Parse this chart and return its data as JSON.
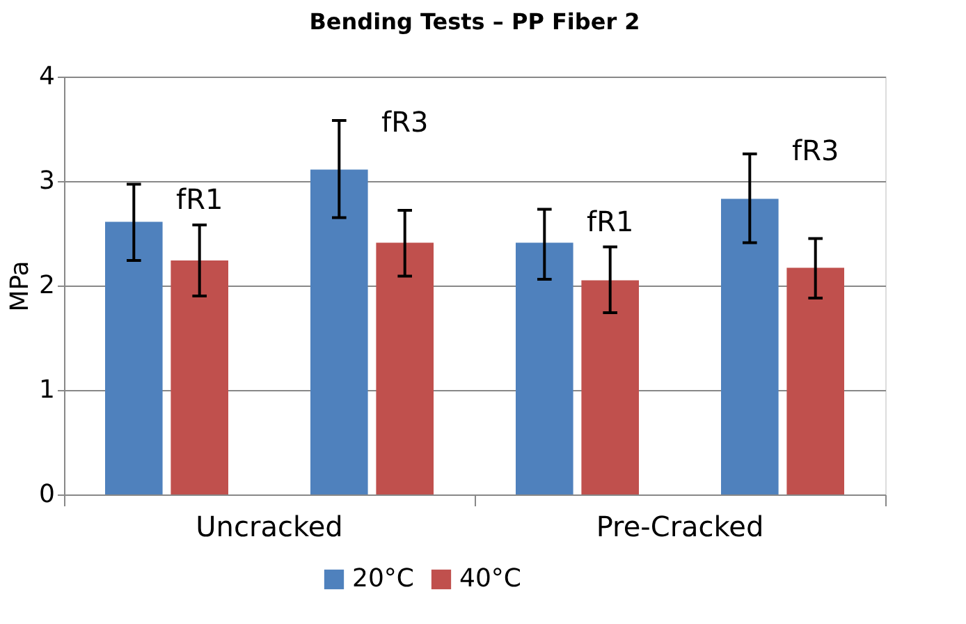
{
  "chart_data": {
    "type": "bar",
    "title": "Bending Tests – PP Fiber 2",
    "ylabel": "MPa",
    "categories": [
      "fR1",
      "fR3",
      "fR1",
      "fR3"
    ],
    "series": [
      {
        "name": "20°C",
        "color": "#4f81bd",
        "values": [
          2.61,
          3.11,
          2.41,
          2.83
        ],
        "errors": [
          [
            2.24,
            2.97
          ],
          [
            2.65,
            3.58
          ],
          [
            2.06,
            2.73
          ],
          [
            2.41,
            3.26
          ]
        ]
      },
      {
        "name": "40°C",
        "color": "#c0504d",
        "values": [
          2.24,
          2.41,
          2.05,
          2.17
        ],
        "errors": [
          [
            1.9,
            2.58
          ],
          [
            2.09,
            2.72
          ],
          [
            1.74,
            2.37
          ],
          [
            1.88,
            2.45
          ]
        ]
      }
    ],
    "annotations": [
      "Uncracked",
      "Pre-Cracked"
    ],
    "ylim": [
      0,
      4
    ],
    "yticks": [
      0,
      1,
      2,
      3,
      4
    ],
    "grid": "y",
    "legend": "bottom"
  }
}
